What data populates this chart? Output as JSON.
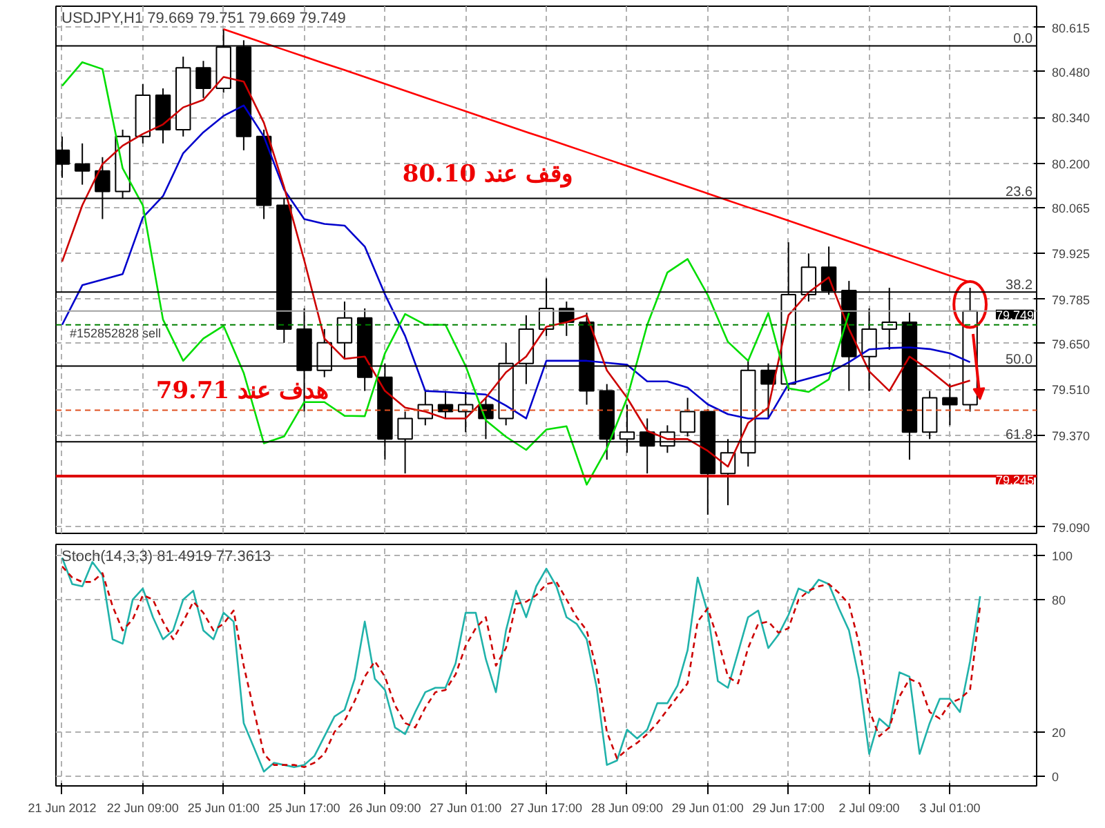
{
  "chart_data": [
    {
      "type": "candlestick",
      "title": "USDJPY,H1  79.669 79.751 79.669 79.749",
      "categories": [
        null,
        null,
        null,
        null,
        null,
        null,
        null,
        null,
        null,
        null,
        null,
        null,
        null,
        null,
        null,
        null,
        null,
        null,
        null,
        null,
        null,
        null,
        null,
        null,
        null,
        null,
        null,
        null,
        null,
        null,
        null,
        null,
        null,
        null,
        null,
        null,
        null,
        null,
        null,
        null,
        null,
        null,
        null,
        null,
        null,
        null
      ],
      "ohlc": [
        [
          80.24,
          80.282,
          80.156,
          80.198
        ],
        [
          80.198,
          80.261,
          80.135,
          80.177
        ],
        [
          80.177,
          80.219,
          80.03,
          80.114
        ],
        [
          80.114,
          80.303,
          80.093,
          80.282
        ],
        [
          80.282,
          80.442,
          80.261,
          80.408
        ],
        [
          80.408,
          80.429,
          80.261,
          80.303
        ],
        [
          80.303,
          80.526,
          80.282,
          80.492
        ],
        [
          80.492,
          80.513,
          80.4,
          80.429
        ],
        [
          80.429,
          80.61,
          80.416,
          80.555
        ],
        [
          80.555,
          80.576,
          80.24,
          80.282
        ],
        [
          80.282,
          80.303,
          80.03,
          80.072
        ],
        [
          80.072,
          80.093,
          79.652,
          79.694
        ],
        [
          79.694,
          79.757,
          79.442,
          79.568
        ],
        [
          79.568,
          79.694,
          79.547,
          79.652
        ],
        [
          79.652,
          79.778,
          79.602,
          79.728
        ],
        [
          79.728,
          79.757,
          79.505,
          79.547
        ],
        [
          79.547,
          79.589,
          79.295,
          79.358
        ],
        [
          79.358,
          79.442,
          79.253,
          79.421
        ],
        [
          79.421,
          79.505,
          79.4,
          79.463
        ],
        [
          79.463,
          79.505,
          79.421,
          79.442
        ],
        [
          79.442,
          79.505,
          79.379,
          79.463
        ],
        [
          79.463,
          79.484,
          79.358,
          79.421
        ],
        [
          79.421,
          79.652,
          79.4,
          79.589
        ],
        [
          79.589,
          79.736,
          79.526,
          79.694
        ],
        [
          79.694,
          79.849,
          79.673,
          79.757
        ],
        [
          79.757,
          79.778,
          79.673,
          79.715
        ],
        [
          79.715,
          79.744,
          79.463,
          79.505
        ],
        [
          79.505,
          79.526,
          79.295,
          79.358
        ],
        [
          79.358,
          79.463,
          79.316,
          79.379
        ],
        [
          79.379,
          79.421,
          79.253,
          79.337
        ],
        [
          79.337,
          79.4,
          79.316,
          79.379
        ],
        [
          79.379,
          79.484,
          79.366,
          79.442
        ],
        [
          79.442,
          79.45,
          79.127,
          79.253
        ],
        [
          79.253,
          79.358,
          79.156,
          79.316
        ],
        [
          79.316,
          79.602,
          79.274,
          79.568
        ],
        [
          79.568,
          79.589,
          79.421,
          79.526
        ],
        [
          79.526,
          79.959,
          79.505,
          79.799
        ],
        [
          79.799,
          79.925,
          79.778,
          79.883
        ],
        [
          79.883,
          79.946,
          79.799,
          79.812
        ],
        [
          79.812,
          79.841,
          79.505,
          79.61
        ],
        [
          79.61,
          79.757,
          79.505,
          79.694
        ],
        [
          79.694,
          79.82,
          79.631,
          79.715
        ],
        [
          79.715,
          79.744,
          79.295,
          79.379
        ],
        [
          79.379,
          79.505,
          79.358,
          79.484
        ],
        [
          79.484,
          79.526,
          79.4,
          79.463
        ],
        [
          79.463,
          79.82,
          79.442,
          79.749
        ]
      ],
      "series": [
        {
          "type": "line",
          "color": "#ff0000",
          "values": [
            null,
            null,
            null,
            null,
            null,
            null,
            null,
            null,
            80.61,
            80.589,
            80.568,
            80.547,
            80.526,
            80.505,
            80.485,
            80.464,
            80.443,
            80.422,
            80.401,
            80.38,
            80.359,
            80.338,
            80.317,
            80.296,
            80.276,
            80.255,
            80.234,
            80.213,
            80.192,
            80.171,
            80.15,
            80.129,
            80.108,
            80.087,
            80.066,
            80.046,
            80.025,
            80.004,
            79.983,
            79.962,
            79.941,
            79.92,
            79.899,
            79.878,
            79.857,
            79.837
          ]
        },
        {
          "type": "line",
          "color": "#0000cc",
          "values": [
            79.707,
            79.828,
            79.845,
            79.862,
            80.035,
            80.1,
            80.231,
            80.295,
            80.345,
            80.377,
            80.282,
            80.12,
            80.03,
            80.015,
            80.01,
            79.946,
            79.8,
            79.673,
            79.505,
            79.502,
            79.498,
            79.494,
            79.46,
            79.421,
            79.597,
            79.597,
            79.597,
            79.591,
            79.585,
            79.534,
            79.534,
            79.515,
            79.464,
            79.434,
            79.421,
            79.421,
            79.526,
            79.543,
            79.56,
            79.593,
            79.632,
            79.636,
            79.638,
            79.633,
            79.62,
            79.593
          ]
        },
        {
          "type": "line",
          "color": "#cc0000",
          "values": [
            79.9,
            80.072,
            80.198,
            80.254,
            80.29,
            80.319,
            80.371,
            80.394,
            80.464,
            80.45,
            80.324,
            80.128,
            79.904,
            79.665,
            79.603,
            79.61,
            79.505,
            79.454,
            79.442,
            79.421,
            79.421,
            79.484,
            79.562,
            79.61,
            79.701,
            79.715,
            79.736,
            79.568,
            79.484,
            79.383,
            79.358,
            79.358,
            79.322,
            79.274,
            79.407,
            79.454,
            79.736,
            79.806,
            79.852,
            79.694,
            79.565,
            79.505,
            79.61,
            79.568,
            79.518,
            79.537
          ]
        },
        {
          "type": "line",
          "color": "#00dd00",
          "values": [
            80.437,
            80.509,
            80.488,
            80.185,
            80.072,
            79.723,
            79.597,
            79.665,
            79.704,
            79.56,
            79.345,
            79.366,
            79.471,
            79.471,
            79.429,
            79.428,
            79.62,
            79.74,
            79.707,
            79.707,
            79.581,
            79.415,
            79.365,
            79.325,
            79.387,
            79.397,
            79.219,
            79.329,
            79.483,
            79.707,
            79.867,
            79.908,
            79.798,
            79.655,
            79.597,
            79.743,
            79.513,
            79.502,
            79.54,
            79.743,
            null,
            null,
            null,
            null,
            null,
            null
          ]
        }
      ],
      "ref_lines": [
        {
          "axis": "y",
          "value": 80.559,
          "color": "#000000",
          "line_style": "solid"
        },
        {
          "axis": "y",
          "value": 80.093,
          "color": "#000000",
          "line_style": "solid"
        },
        {
          "axis": "y",
          "value": 79.807,
          "color": "#000000",
          "line_style": "solid"
        },
        {
          "axis": "y",
          "value": 79.581,
          "color": "#000000",
          "line_style": "solid"
        },
        {
          "axis": "y",
          "value": 79.35,
          "color": "#000000",
          "line_style": "solid"
        },
        {
          "axis": "y",
          "value": 79.749,
          "label": "79.749",
          "color": "#a0a0a0",
          "line_style": "solid"
        },
        {
          "axis": "y",
          "value": 79.707,
          "label": "#152852828 sell",
          "color": "#008000",
          "line_style": "dashed"
        },
        {
          "axis": "y",
          "value": 79.446,
          "color": "#e05020",
          "line_style": "dashed"
        },
        {
          "axis": "y",
          "value": 79.245,
          "label": "79.245",
          "color": "#dd0000",
          "line_style": "solid"
        }
      ],
      "annotations": [
        {
          "text": "0.0",
          "y": 80.559
        },
        {
          "text": "23.6",
          "y": 80.093
        },
        {
          "text": "38.2",
          "y": 79.807
        },
        {
          "text": "50.0",
          "y": 79.581
        },
        {
          "text": "61.8",
          "y": 79.35
        },
        "وقف عند 80.10",
        "هدف عند 79.71"
      ],
      "ylim": [
        79.07,
        80.68
      ],
      "yticks": [
        {
          "value": 80.615,
          "label": "80.615"
        },
        {
          "value": 80.48,
          "label": "80.480"
        },
        {
          "value": 80.34,
          "label": "80.340"
        },
        {
          "value": 80.2,
          "label": "80.200"
        },
        {
          "value": 80.065,
          "label": "80.065"
        },
        {
          "value": 79.925,
          "label": "79.925"
        },
        {
          "value": 79.785,
          "label": "79.785"
        },
        {
          "value": 79.65,
          "label": "79.650"
        },
        {
          "value": 79.51,
          "label": "79.510"
        },
        {
          "value": 79.37,
          "label": "79.370"
        },
        {
          "value": 79.09,
          "label": "79.090"
        }
      ],
      "tick_labels": "y",
      "grid": true
    },
    {
      "type": "line",
      "title": "Stoch(14,3,3) 81.4919 77.3613",
      "categories": [
        "21 Jun 2012",
        null,
        null,
        null,
        null,
        null,
        null,
        null,
        "22 Jun 09:00",
        null,
        null,
        null,
        null,
        null,
        null,
        null,
        "25 Jun 01:00",
        null,
        null,
        null,
        null,
        null,
        null,
        null,
        "25 Jun 17:00",
        null,
        null,
        null,
        null,
        null,
        null,
        null,
        "26 Jun 09:00",
        null,
        null,
        null,
        null,
        null,
        null,
        null,
        "27 Jun 01:00",
        null,
        null,
        null,
        null,
        null,
        null,
        null,
        "27 Jun 17:00",
        null,
        null,
        null,
        null,
        null,
        null,
        null,
        "28 Jun 09:00",
        null,
        null,
        null,
        null,
        null,
        null,
        null,
        "29 Jun 01:00",
        null,
        null,
        null,
        null,
        null,
        null,
        null,
        "29 Jun 17:00",
        null,
        null,
        null,
        null,
        null,
        null,
        null,
        "2 Jul 09:00",
        null,
        null,
        null,
        null,
        null,
        null,
        null,
        "3 Jul 01:00",
        null,
        null,
        null
      ],
      "series": [
        {
          "color": "#20b2aa",
          "line_style": "solid",
          "values": [
            99,
            87,
            86,
            97,
            91,
            62,
            60,
            80,
            85,
            72,
            62,
            66,
            80,
            84,
            66,
            62,
            74,
            70,
            24,
            13,
            2,
            6,
            5,
            4,
            5,
            9,
            18,
            27,
            30,
            44,
            70,
            44,
            39,
            22,
            19,
            29,
            38,
            40,
            40,
            51,
            74,
            74,
            53,
            38,
            66,
            84,
            72,
            86,
            94,
            86,
            72,
            69,
            62,
            40,
            5,
            7,
            21,
            17,
            21,
            33,
            33,
            41,
            57,
            90,
            74,
            43,
            40,
            56,
            72,
            75,
            58,
            64,
            73,
            85,
            83,
            89,
            87,
            76,
            66,
            44,
            10,
            26,
            22,
            47,
            45,
            10,
            24,
            35,
            35,
            29,
            52,
            81.5
          ]
        },
        {
          "color": "#cc0000",
          "line_style": "dashed",
          "values": [
            95,
            90,
            88,
            88,
            92,
            77,
            66,
            71,
            82,
            80,
            70,
            62,
            70,
            79,
            74,
            66,
            69,
            75,
            50,
            30,
            10,
            5,
            5,
            5,
            4,
            6,
            10,
            20,
            25,
            34,
            45,
            52,
            45,
            32,
            24,
            22,
            31,
            38,
            39,
            46,
            59,
            67,
            72,
            50,
            58,
            78,
            79,
            82,
            87,
            88,
            80,
            72,
            66,
            48,
            20,
            8,
            12,
            15,
            19,
            24,
            30,
            36,
            42,
            70,
            76,
            62,
            45,
            42,
            58,
            69,
            70,
            65,
            67,
            80,
            84,
            86,
            87,
            83,
            78,
            60,
            30,
            18,
            22,
            36,
            44,
            42,
            29,
            26,
            33,
            35,
            39,
            77.4
          ]
        }
      ],
      "ylim": [
        -4.5,
        105
      ],
      "yticks": [
        0,
        20,
        80,
        100
      ],
      "grid": true
    }
  ]
}
